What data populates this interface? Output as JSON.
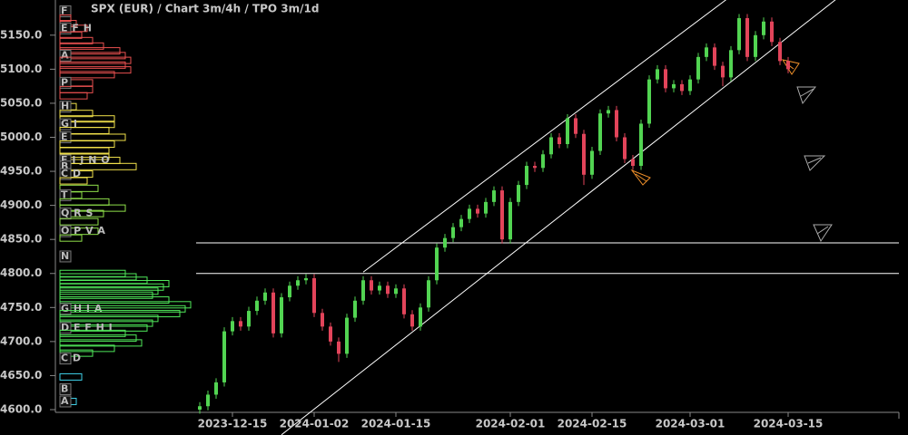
{
  "chart_data": {
    "type": "candlestick",
    "title": "SPX (EUR) /  Chart 3m/4h / TPO 3m/1d",
    "categories": [
      null,
      null,
      null,
      null,
      "2023-12-15",
      null,
      null,
      null,
      null,
      null,
      null,
      null,
      null,
      null,
      "2024-01-02",
      null,
      null,
      null,
      null,
      null,
      null,
      null,
      null,
      null,
      "2024-01-15",
      null,
      null,
      null,
      null,
      null,
      null,
      null,
      null,
      null,
      null,
      null,
      null,
      null,
      "2024-02-01",
      null,
      null,
      null,
      null,
      null,
      null,
      null,
      null,
      null,
      "2024-02-15",
      null,
      null,
      null,
      null,
      null,
      null,
      null,
      null,
      null,
      null,
      null,
      "2024-03-01",
      null,
      null,
      null,
      null,
      null,
      null,
      null,
      null,
      null,
      null,
      null,
      "2024-03-15"
    ],
    "open": [
      4600,
      4605,
      4622,
      4640,
      4715,
      4730,
      4722,
      4745,
      4760,
      4772,
      4712,
      4765,
      4782,
      4790,
      4793,
      4742,
      4722,
      4700,
      4682,
      4735,
      4760,
      4790,
      4775,
      4782,
      4770,
      4778,
      4740,
      4722,
      4750,
      4790,
      4838,
      4852,
      4868,
      4880,
      4895,
      4888,
      4905,
      4922,
      4850,
      4905,
      4930,
      4958,
      4955,
      4975,
      5000,
      4990,
      5028,
      5005,
      4945,
      4980,
      5035,
      5040,
      5000,
      4968,
      4958,
      5020,
      5085,
      5100,
      5072,
      5078,
      5068,
      5085,
      5118,
      5132,
      5105,
      5088,
      5128,
      5175,
      5118,
      5150,
      5170,
      5140,
      5112
    ],
    "high": [
      4611,
      4628,
      4646,
      4721,
      4736,
      4736,
      4751,
      4766,
      4778,
      4778,
      4771,
      4788,
      4796,
      4799,
      4799,
      4748,
      4728,
      4706,
      4741,
      4766,
      4796,
      4796,
      4788,
      4788,
      4784,
      4784,
      4746,
      4756,
      4796,
      4844,
      4858,
      4874,
      4886,
      4901,
      4901,
      4911,
      4928,
      4928,
      4911,
      4936,
      4964,
      4964,
      4981,
      5006,
      5006,
      5034,
      5034,
      5011,
      4986,
      5041,
      5046,
      5046,
      5006,
      4974,
      5026,
      5091,
      5106,
      5106,
      5084,
      5084,
      5091,
      5124,
      5138,
      5138,
      5111,
      5134,
      5181,
      5181,
      5156,
      5176,
      5176,
      5146,
      5118
    ],
    "low": [
      4594,
      4599,
      4616,
      4634,
      4709,
      4716,
      4716,
      4739,
      4754,
      4706,
      4706,
      4759,
      4776,
      4784,
      4736,
      4716,
      4694,
      4670,
      4676,
      4729,
      4754,
      4769,
      4769,
      4764,
      4764,
      4734,
      4716,
      4716,
      4744,
      4784,
      4832,
      4846,
      4862,
      4874,
      4882,
      4882,
      4899,
      4844,
      4844,
      4899,
      4924,
      4949,
      4949,
      4969,
      4984,
      4984,
      4999,
      4930,
      4939,
      4974,
      5029,
      4994,
      4962,
      4952,
      4952,
      5014,
      5079,
      5066,
      5066,
      5062,
      5062,
      5079,
      5112,
      5099,
      5075,
      5082,
      5122,
      5112,
      5112,
      5144,
      5134,
      5106,
      5094
    ],
    "close": [
      4605,
      4622,
      4640,
      4715,
      4730,
      4722,
      4745,
      4760,
      4772,
      4712,
      4765,
      4782,
      4790,
      4793,
      4742,
      4722,
      4700,
      4682,
      4735,
      4760,
      4790,
      4775,
      4782,
      4770,
      4778,
      4740,
      4722,
      4750,
      4790,
      4838,
      4852,
      4868,
      4880,
      4895,
      4888,
      4905,
      4922,
      4850,
      4905,
      4930,
      4958,
      4955,
      4975,
      5000,
      4990,
      5028,
      5005,
      4945,
      4980,
      5035,
      5040,
      5000,
      4968,
      4958,
      5020,
      5085,
      5100,
      5072,
      5078,
      5068,
      5085,
      5118,
      5132,
      5105,
      5088,
      5128,
      5175,
      5118,
      5150,
      5170,
      5140,
      5112,
      5100
    ],
    "up_color": "#52d452",
    "down_color": "#e2445a",
    "ylim": [
      4596,
      5195
    ],
    "yticks": [
      {
        "value": 4600,
        "label": "4600.0"
      },
      {
        "value": 4650,
        "label": "4650.0"
      },
      {
        "value": 4700,
        "label": "4700.0"
      },
      {
        "value": 4750,
        "label": "4750.0"
      },
      {
        "value": 4800,
        "label": "4800.0"
      },
      {
        "value": 4850,
        "label": "4850.0"
      },
      {
        "value": 4900,
        "label": "4900.0"
      },
      {
        "value": 4950,
        "label": "4950.0"
      },
      {
        "value": 5000,
        "label": "5000.0"
      },
      {
        "value": 5050,
        "label": "5050.0"
      },
      {
        "value": 5100,
        "label": "5100.0"
      },
      {
        "value": 5150,
        "label": "5150.0"
      }
    ],
    "levels": [
      4845,
      4800
    ],
    "trendlines": [
      {
        "start": [
          10,
          4563
        ],
        "end": [
          78,
          5204
        ]
      },
      {
        "start": [
          20,
          4802
        ],
        "end": [
          64.4,
          5202
        ]
      }
    ],
    "tpo": [
      {
        "color": "#e8504f",
        "rows": [
          {
            "price": 5185,
            "count": 2,
            "label": "F"
          },
          {
            "price": 5175,
            "count": 2
          },
          {
            "price": 5167,
            "count": 3
          },
          {
            "price": 5160,
            "count": 5,
            "label": "E F H"
          },
          {
            "price": 5150,
            "count": 4
          },
          {
            "price": 5142,
            "count": 6
          },
          {
            "price": 5134,
            "count": 8
          },
          {
            "price": 5127,
            "count": 11
          },
          {
            "price": 5120,
            "count": 12,
            "label": "A"
          },
          {
            "price": 5113,
            "count": 13
          },
          {
            "price": 5106,
            "count": 12
          },
          {
            "price": 5099,
            "count": 13
          },
          {
            "price": 5092,
            "count": 10
          },
          {
            "price": 5080,
            "count": 6,
            "label": "P"
          },
          {
            "price": 5070,
            "count": 6
          },
          {
            "price": 5061,
            "count": 5
          }
        ]
      },
      {
        "color": "#f0e04a",
        "rows": [
          {
            "price": 5045,
            "count": 3,
            "label": "H"
          },
          {
            "price": 5035,
            "count": 6
          },
          {
            "price": 5027,
            "count": 10
          },
          {
            "price": 5019,
            "count": 10,
            "label": "G I"
          },
          {
            "price": 5010,
            "count": 9
          },
          {
            "price": 5000,
            "count": 12,
            "label": "E"
          },
          {
            "price": 4990,
            "count": 10
          },
          {
            "price": 4980,
            "count": 9
          },
          {
            "price": 4972,
            "count": 9
          },
          {
            "price": 4966,
            "count": 11,
            "label": "E I J N O"
          },
          {
            "price": 4957,
            "count": 14,
            "label": "B"
          },
          {
            "price": 4946,
            "count": 6,
            "label": "C D"
          },
          {
            "price": 4936,
            "count": 5
          }
        ]
      },
      {
        "color": "#8fe04a",
        "rows": [
          {
            "price": 4925,
            "count": 7
          },
          {
            "price": 4915,
            "count": 4,
            "label": "T"
          },
          {
            "price": 4905,
            "count": 9
          },
          {
            "price": 4896,
            "count": 12
          },
          {
            "price": 4888,
            "count": 8,
            "label": "Q R S"
          },
          {
            "price": 4876,
            "count": 7
          },
          {
            "price": 4862,
            "count": 7,
            "label": "O P V A"
          },
          {
            "price": 4852,
            "count": 4
          },
          {
            "price": 4825,
            "count": 1,
            "label": "N"
          }
        ]
      },
      {
        "color": "#4fe85a",
        "rows": [
          {
            "price": 4800,
            "count": 12
          },
          {
            "price": 4795,
            "count": 14
          },
          {
            "price": 4790,
            "count": 16
          },
          {
            "price": 4785,
            "count": 20
          },
          {
            "price": 4780,
            "count": 19
          },
          {
            "price": 4774,
            "count": 18
          },
          {
            "price": 4768,
            "count": 17
          },
          {
            "price": 4761,
            "count": 20
          },
          {
            "price": 4754,
            "count": 24
          },
          {
            "price": 4748,
            "count": 23,
            "label": "G H I A"
          },
          {
            "price": 4741,
            "count": 22
          },
          {
            "price": 4734,
            "count": 18
          },
          {
            "price": 4727,
            "count": 17
          },
          {
            "price": 4720,
            "count": 16,
            "label": "D E F H I"
          },
          {
            "price": 4712,
            "count": 12
          },
          {
            "price": 4705,
            "count": 14
          },
          {
            "price": 4698,
            "count": 15
          },
          {
            "price": 4690,
            "count": 10
          },
          {
            "price": 4683,
            "count": 6
          }
        ]
      },
      {
        "color": "#3fd0e8",
        "rows": [
          {
            "price": 4675,
            "count": 2,
            "label": "C D"
          },
          {
            "price": 4648,
            "count": 4
          },
          {
            "price": 4630,
            "count": 2,
            "label": "B"
          },
          {
            "price": 4612,
            "count": 3,
            "label": "A"
          }
        ]
      }
    ]
  }
}
